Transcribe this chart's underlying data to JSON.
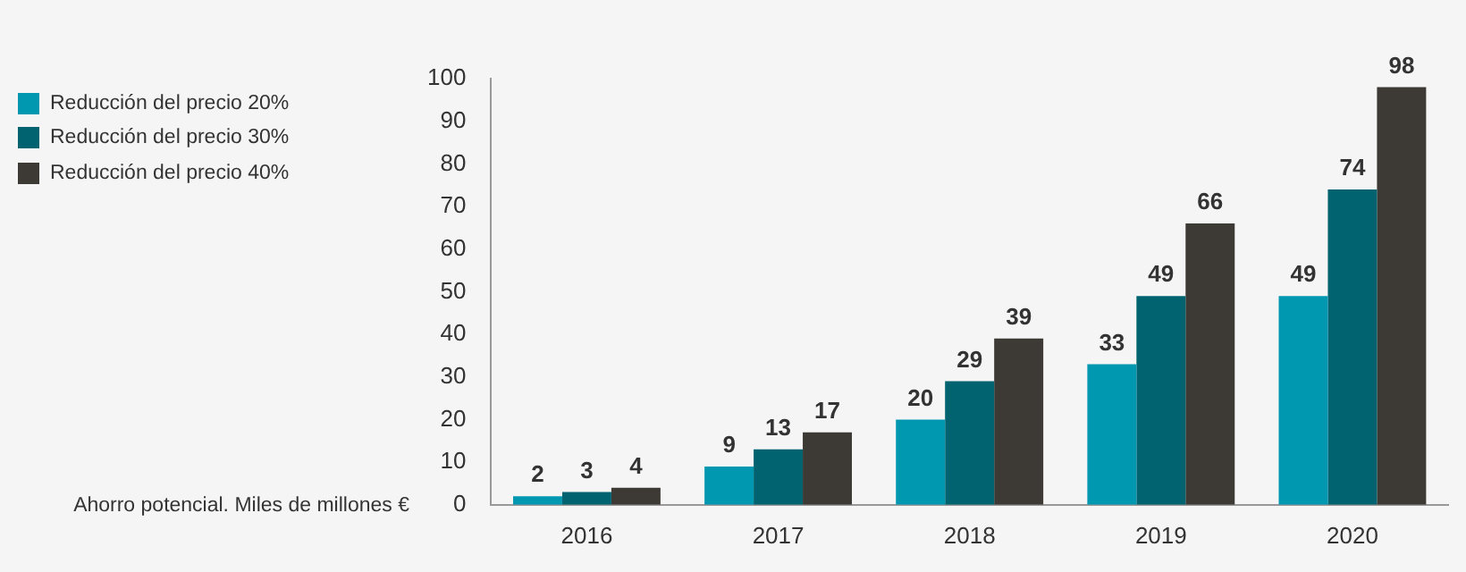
{
  "chart_data": {
    "type": "bar",
    "ylabel": "Ahorro potencial. Miles de millones €",
    "categories": [
      "2016",
      "2017",
      "2018",
      "2019",
      "2020"
    ],
    "series": [
      {
        "name": "Reducción del precio 20%",
        "color": "#0097b0",
        "values": [
          2,
          9,
          20,
          33,
          49
        ]
      },
      {
        "name": "Reducción del precio 30%",
        "color": "#00636f",
        "values": [
          3,
          13,
          29,
          49,
          74
        ]
      },
      {
        "name": "Reducción del precio 40%",
        "color": "#3d3935",
        "values": [
          4,
          17,
          39,
          66,
          98
        ]
      }
    ],
    "ylim": [
      0,
      100
    ],
    "yticks": [
      0,
      10,
      20,
      30,
      40,
      50,
      60,
      70,
      80,
      90,
      100
    ],
    "grid": false,
    "legend": "left",
    "data_labels": true
  }
}
